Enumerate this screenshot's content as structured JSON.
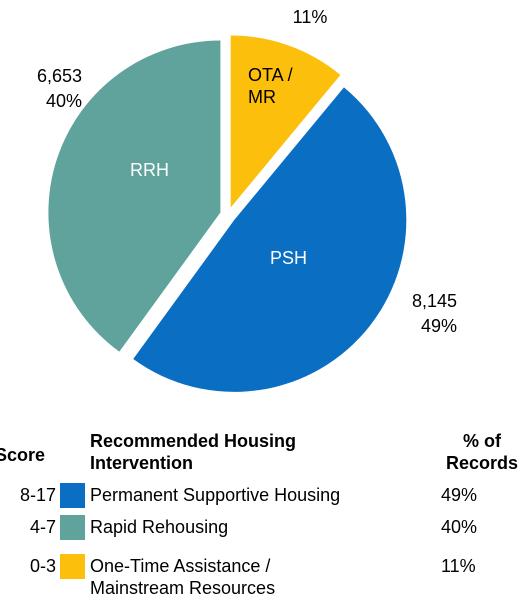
{
  "chart_data": {
    "type": "pie",
    "categories": [
      "PSH",
      "RRH",
      "OTA / MR"
    ],
    "values": [
      49,
      40,
      11
    ],
    "value_labels": [
      "49%",
      "40%",
      "11%"
    ],
    "counts": [
      8145,
      6653,
      null
    ],
    "count_labels": [
      "8,145",
      "6,653",
      null
    ],
    "colors": [
      "#0a6fc2",
      "#5fa39c",
      "#fcbf0b"
    ]
  },
  "legend_table": {
    "headers": [
      "Score",
      "Recommended Housing Intervention",
      "% of Records"
    ],
    "rows": [
      [
        "8-17",
        "Permanent Supportive Housing"
      ],
      [
        "4-7",
        "Rapid Rehousing"
      ],
      [
        "0-3",
        "One-Time Assistance / Mainstream Resources"
      ]
    ]
  }
}
